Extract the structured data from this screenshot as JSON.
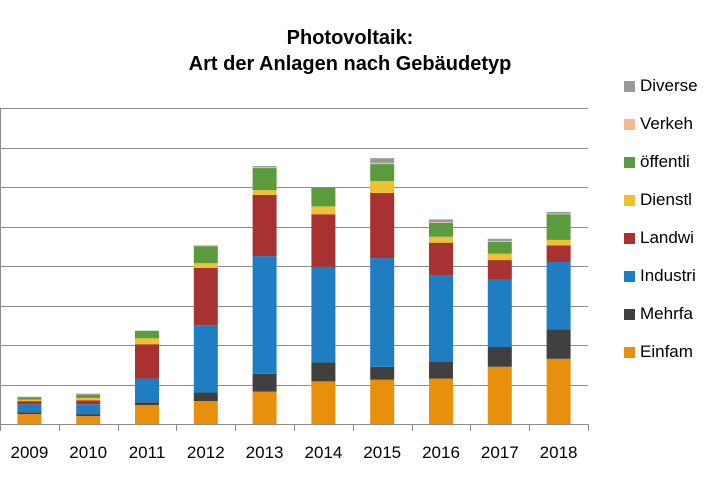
{
  "chart_data": {
    "type": "bar",
    "stacked": true,
    "title_lines": [
      "Photovoltaik:",
      "Art der Anlagen nach Gebäudetyp"
    ],
    "categories": [
      "2009",
      "2010",
      "2011",
      "2012",
      "2013",
      "2014",
      "2015",
      "2016",
      "2017",
      "2018"
    ],
    "ylim": [
      0,
      8
    ],
    "grid": true,
    "legend_position": "right",
    "series": [
      {
        "name": "Einfam",
        "color": "#E8900C",
        "values": [
          0.25,
          0.2,
          0.48,
          0.58,
          0.82,
          1.08,
          1.12,
          1.15,
          1.45,
          1.65
        ]
      },
      {
        "name": "Mehrfa",
        "color": "#404040",
        "values": [
          0.05,
          0.05,
          0.07,
          0.22,
          0.45,
          0.48,
          0.33,
          0.42,
          0.5,
          0.75
        ]
      },
      {
        "name": "Industri",
        "color": "#1F7DC2",
        "values": [
          0.2,
          0.25,
          0.6,
          1.7,
          2.98,
          2.42,
          2.75,
          2.2,
          1.7,
          1.7
        ]
      },
      {
        "name": "Landwi",
        "color": "#A83232",
        "values": [
          0.08,
          0.1,
          0.87,
          1.45,
          1.55,
          1.33,
          1.65,
          0.82,
          0.5,
          0.42
        ]
      },
      {
        "name": "Dienstl",
        "color": "#EDC132",
        "values": [
          0.04,
          0.06,
          0.15,
          0.12,
          0.12,
          0.2,
          0.3,
          0.15,
          0.16,
          0.14
        ]
      },
      {
        "name": "öffentli",
        "color": "#5A9C3D",
        "values": [
          0.05,
          0.08,
          0.19,
          0.43,
          0.56,
          0.48,
          0.43,
          0.35,
          0.3,
          0.65
        ]
      },
      {
        "name": "Verkeh",
        "color": "#F5B895",
        "values": [
          0,
          0,
          0,
          0,
          0.02,
          0,
          0.03,
          0.02,
          0.02,
          0.02
        ]
      },
      {
        "name": "Diverse",
        "color": "#9A9A9A",
        "values": [
          0.02,
          0.03,
          0,
          0.02,
          0.03,
          0.01,
          0.12,
          0.07,
          0.06,
          0.04
        ]
      }
    ]
  }
}
